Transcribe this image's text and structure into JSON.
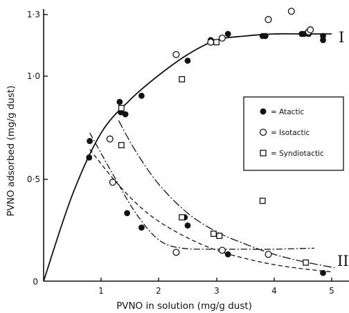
{
  "chart_data": {
    "type": "scatter",
    "xlabel": "PVNO in solution (mg/g dust)",
    "ylabel": "PVNO adsorbed (mg/g dust)",
    "xlim": [
      0,
      5.3
    ],
    "ylim": [
      0,
      1.32
    ],
    "x_ticks": [
      "1",
      "2",
      "3",
      "4",
      "5"
    ],
    "y_ticks": [
      "0",
      "0·5",
      "1·0",
      "1·3"
    ],
    "x_tick_values": [
      1,
      2,
      3,
      4,
      5
    ],
    "y_tick_values": [
      0,
      0.5,
      1.0,
      1.3
    ],
    "legend": {
      "placement": "right",
      "entries": [
        {
          "marker": "filled-circle",
          "label": "= Atactic"
        },
        {
          "marker": "open-circle",
          "label": "= Isotactic"
        },
        {
          "marker": "open-square",
          "label": "= Syndiotactic"
        }
      ]
    },
    "curve_labels": [
      "I",
      "II"
    ],
    "series": [
      {
        "name": "Atactic",
        "marker": "filled-circle",
        "points": [
          [
            0.79,
            0.6
          ],
          [
            0.8,
            0.68
          ],
          [
            1.32,
            0.87
          ],
          [
            1.34,
            0.82
          ],
          [
            1.42,
            0.81
          ],
          [
            1.7,
            0.9
          ],
          [
            2.5,
            1.07
          ],
          [
            2.9,
            1.17
          ],
          [
            3.2,
            1.2
          ],
          [
            3.8,
            1.19
          ],
          [
            3.85,
            1.19
          ],
          [
            4.48,
            1.2
          ],
          [
            4.52,
            1.2
          ],
          [
            4.6,
            1.2
          ],
          [
            4.85,
            1.19
          ],
          [
            4.85,
            1.17
          ],
          [
            1.45,
            0.33
          ],
          [
            1.7,
            0.26
          ],
          [
            2.45,
            0.31
          ],
          [
            2.5,
            0.27
          ],
          [
            3.2,
            0.13
          ],
          [
            4.85,
            0.04
          ]
        ]
      },
      {
        "name": "Isotactic",
        "marker": "open-circle",
        "points": [
          [
            2.3,
            1.1
          ],
          [
            2.9,
            1.16
          ],
          [
            3.1,
            1.18
          ],
          [
            3.9,
            1.27
          ],
          [
            4.3,
            1.31
          ],
          [
            4.6,
            1.21
          ],
          [
            4.63,
            1.22
          ],
          [
            1.15,
            0.69
          ],
          [
            1.2,
            0.48
          ],
          [
            2.3,
            0.14
          ],
          [
            3.1,
            0.15
          ],
          [
            3.9,
            0.13
          ]
        ]
      },
      {
        "name": "Syndiotactic",
        "marker": "open-square",
        "points": [
          [
            1.35,
            0.84
          ],
          [
            2.4,
            0.98
          ],
          [
            3.0,
            1.16
          ],
          [
            3.8,
            0.39
          ],
          [
            1.35,
            0.66
          ],
          [
            2.4,
            0.31
          ],
          [
            2.95,
            0.23
          ],
          [
            3.05,
            0.22
          ],
          [
            4.55,
            0.09
          ]
        ]
      }
    ],
    "curves": [
      {
        "label": "I",
        "style": "solid",
        "points": [
          [
            0.0,
            0.0
          ],
          [
            0.5,
            0.42
          ],
          [
            1.0,
            0.72
          ],
          [
            1.5,
            0.88
          ],
          [
            2.0,
            1.0
          ],
          [
            2.5,
            1.1
          ],
          [
            3.0,
            1.17
          ],
          [
            3.5,
            1.19
          ],
          [
            4.0,
            1.2
          ],
          [
            4.5,
            1.2
          ],
          [
            5.0,
            1.2
          ]
        ]
      },
      {
        "label": "II",
        "style": "dash-dot",
        "points": [
          [
            0.8,
            0.72
          ],
          [
            1.2,
            0.52
          ],
          [
            1.6,
            0.33
          ],
          [
            2.0,
            0.2
          ],
          [
            2.4,
            0.16
          ],
          [
            3.0,
            0.155
          ],
          [
            3.5,
            0.155
          ],
          [
            4.0,
            0.155
          ],
          [
            4.7,
            0.16
          ]
        ]
      },
      {
        "label": "II",
        "style": "dashed",
        "points": [
          [
            0.8,
            0.64
          ],
          [
            1.2,
            0.5
          ],
          [
            1.6,
            0.38
          ],
          [
            2.0,
            0.29
          ],
          [
            2.5,
            0.21
          ],
          [
            3.0,
            0.15
          ],
          [
            3.5,
            0.11
          ],
          [
            4.0,
            0.08
          ],
          [
            4.5,
            0.06
          ],
          [
            5.0,
            0.045
          ]
        ]
      },
      {
        "label": "II",
        "style": "long-dash-dot",
        "points": [
          [
            1.3,
            0.78
          ],
          [
            1.6,
            0.63
          ],
          [
            2.0,
            0.47
          ],
          [
            2.5,
            0.33
          ],
          [
            3.0,
            0.24
          ],
          [
            3.5,
            0.18
          ],
          [
            4.0,
            0.13
          ],
          [
            4.5,
            0.095
          ],
          [
            5.05,
            0.065
          ]
        ]
      }
    ]
  }
}
